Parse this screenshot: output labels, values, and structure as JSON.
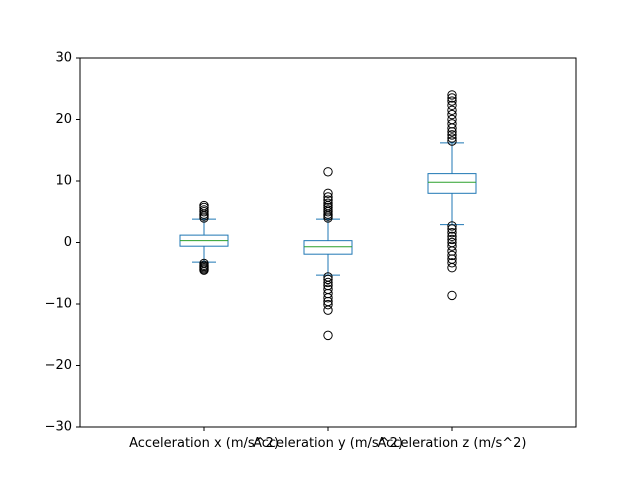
{
  "chart_data": {
    "type": "box",
    "title": "",
    "xlabel": "",
    "ylabel": "",
    "ylim": [
      -30,
      30
    ],
    "yticks": [
      -30,
      -20,
      -10,
      0,
      10,
      20,
      30
    ],
    "ytick_labels": [
      "−30",
      "−20",
      "−10",
      "0",
      "10",
      "20",
      "30"
    ],
    "categories": [
      "Acceleration x (m/s^2)",
      "Acceleration y (m/s^2)",
      "Acceleration z (m/s^2)"
    ],
    "grid": false,
    "colors": {
      "box": "#1f77b4",
      "median": "#2ca02c",
      "flier": "#000000",
      "axes": "#000000"
    },
    "series": [
      {
        "whisker_low": -3.2,
        "q1": -0.6,
        "median": 0.3,
        "q3": 1.2,
        "whisker_high": 3.8,
        "outliers": [
          4.0,
          4.3,
          4.6,
          5.0,
          5.3,
          5.7,
          6.0,
          -3.4,
          -3.7,
          -3.9,
          -4.1,
          -4.3,
          -4.5
        ]
      },
      {
        "whisker_low": -5.3,
        "q1": -1.9,
        "median": -0.7,
        "q3": 0.3,
        "whisker_high": 3.8,
        "outliers": [
          4.0,
          4.3,
          4.6,
          5.0,
          5.3,
          5.7,
          6.0,
          6.4,
          6.9,
          7.4,
          8.0,
          11.5,
          -5.6,
          -6.0,
          -6.5,
          -7.0,
          -7.6,
          -8.3,
          -9.0,
          -9.6,
          -10.1,
          -11.0,
          -15.1
        ]
      },
      {
        "whisker_low": 2.9,
        "q1": 8.0,
        "median": 9.8,
        "q3": 11.2,
        "whisker_high": 16.2,
        "outliers": [
          16.5,
          17.0,
          17.5,
          18.0,
          18.6,
          19.3,
          20.0,
          20.8,
          21.5,
          22.3,
          23.0,
          23.5,
          24.0,
          2.7,
          2.2,
          1.6,
          1.0,
          0.5,
          0.0,
          -0.6,
          -1.4,
          -2.1,
          -2.7,
          -3.3,
          -4.1,
          -8.6
        ]
      }
    ]
  }
}
